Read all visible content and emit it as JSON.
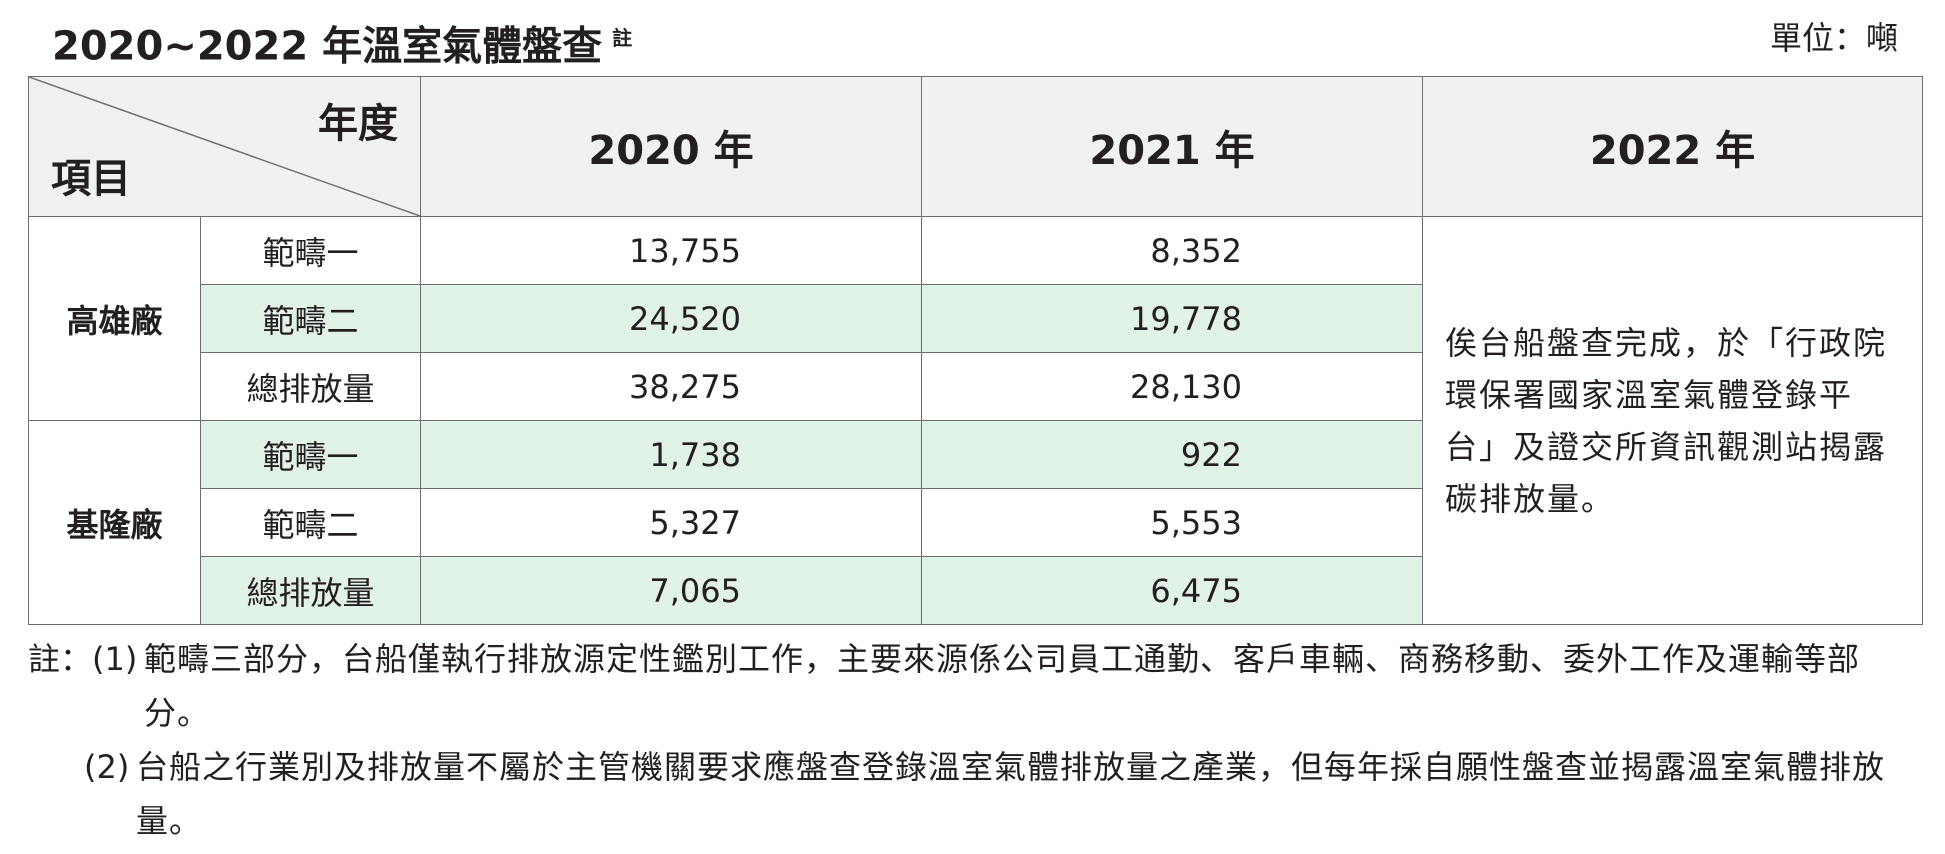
{
  "header": {
    "title": "2020~2022 年溫室氣體盤查",
    "title_note": "註",
    "unit": "單位：噸"
  },
  "table": {
    "corner_top": "年度",
    "corner_bottom": "項目",
    "years": [
      "2020 年",
      "2021 年",
      "2022 年"
    ],
    "plants": [
      {
        "name": "高雄廠",
        "rows": [
          {
            "item": "範疇一",
            "y2020": "13,755",
            "y2021": "8,352"
          },
          {
            "item": "範疇二",
            "y2020": "24,520",
            "y2021": "19,778"
          },
          {
            "item": "總排放量",
            "y2020": "38,275",
            "y2021": "28,130"
          }
        ]
      },
      {
        "name": "基隆廠",
        "rows": [
          {
            "item": "範疇一",
            "y2020": "1,738",
            "y2021": "922"
          },
          {
            "item": "範疇二",
            "y2020": "5,327",
            "y2021": "5,553"
          },
          {
            "item": "總排放量",
            "y2020": "7,065",
            "y2021": "6,475"
          }
        ]
      }
    ],
    "note_2022": "俟台船盤查完成，於「行政院環保署國家溫室氣體登錄平台」及證交所資訊觀測站揭露碳排放量。"
  },
  "footnotes": {
    "prefix": "註：",
    "items": [
      {
        "num": "(1)",
        "text": "範疇三部分，台船僅執行排放源定性鑑別工作，主要來源係公司員工通勤、客戶車輛、商務移動、委外工作及運輸等部分。"
      },
      {
        "num": "(2)",
        "text": "台船之行業別及排放量不屬於主管機關要求應盤查登錄溫室氣體排放量之產業，但每年採自願性盤查並揭露溫室氣體排放量。"
      }
    ]
  }
}
